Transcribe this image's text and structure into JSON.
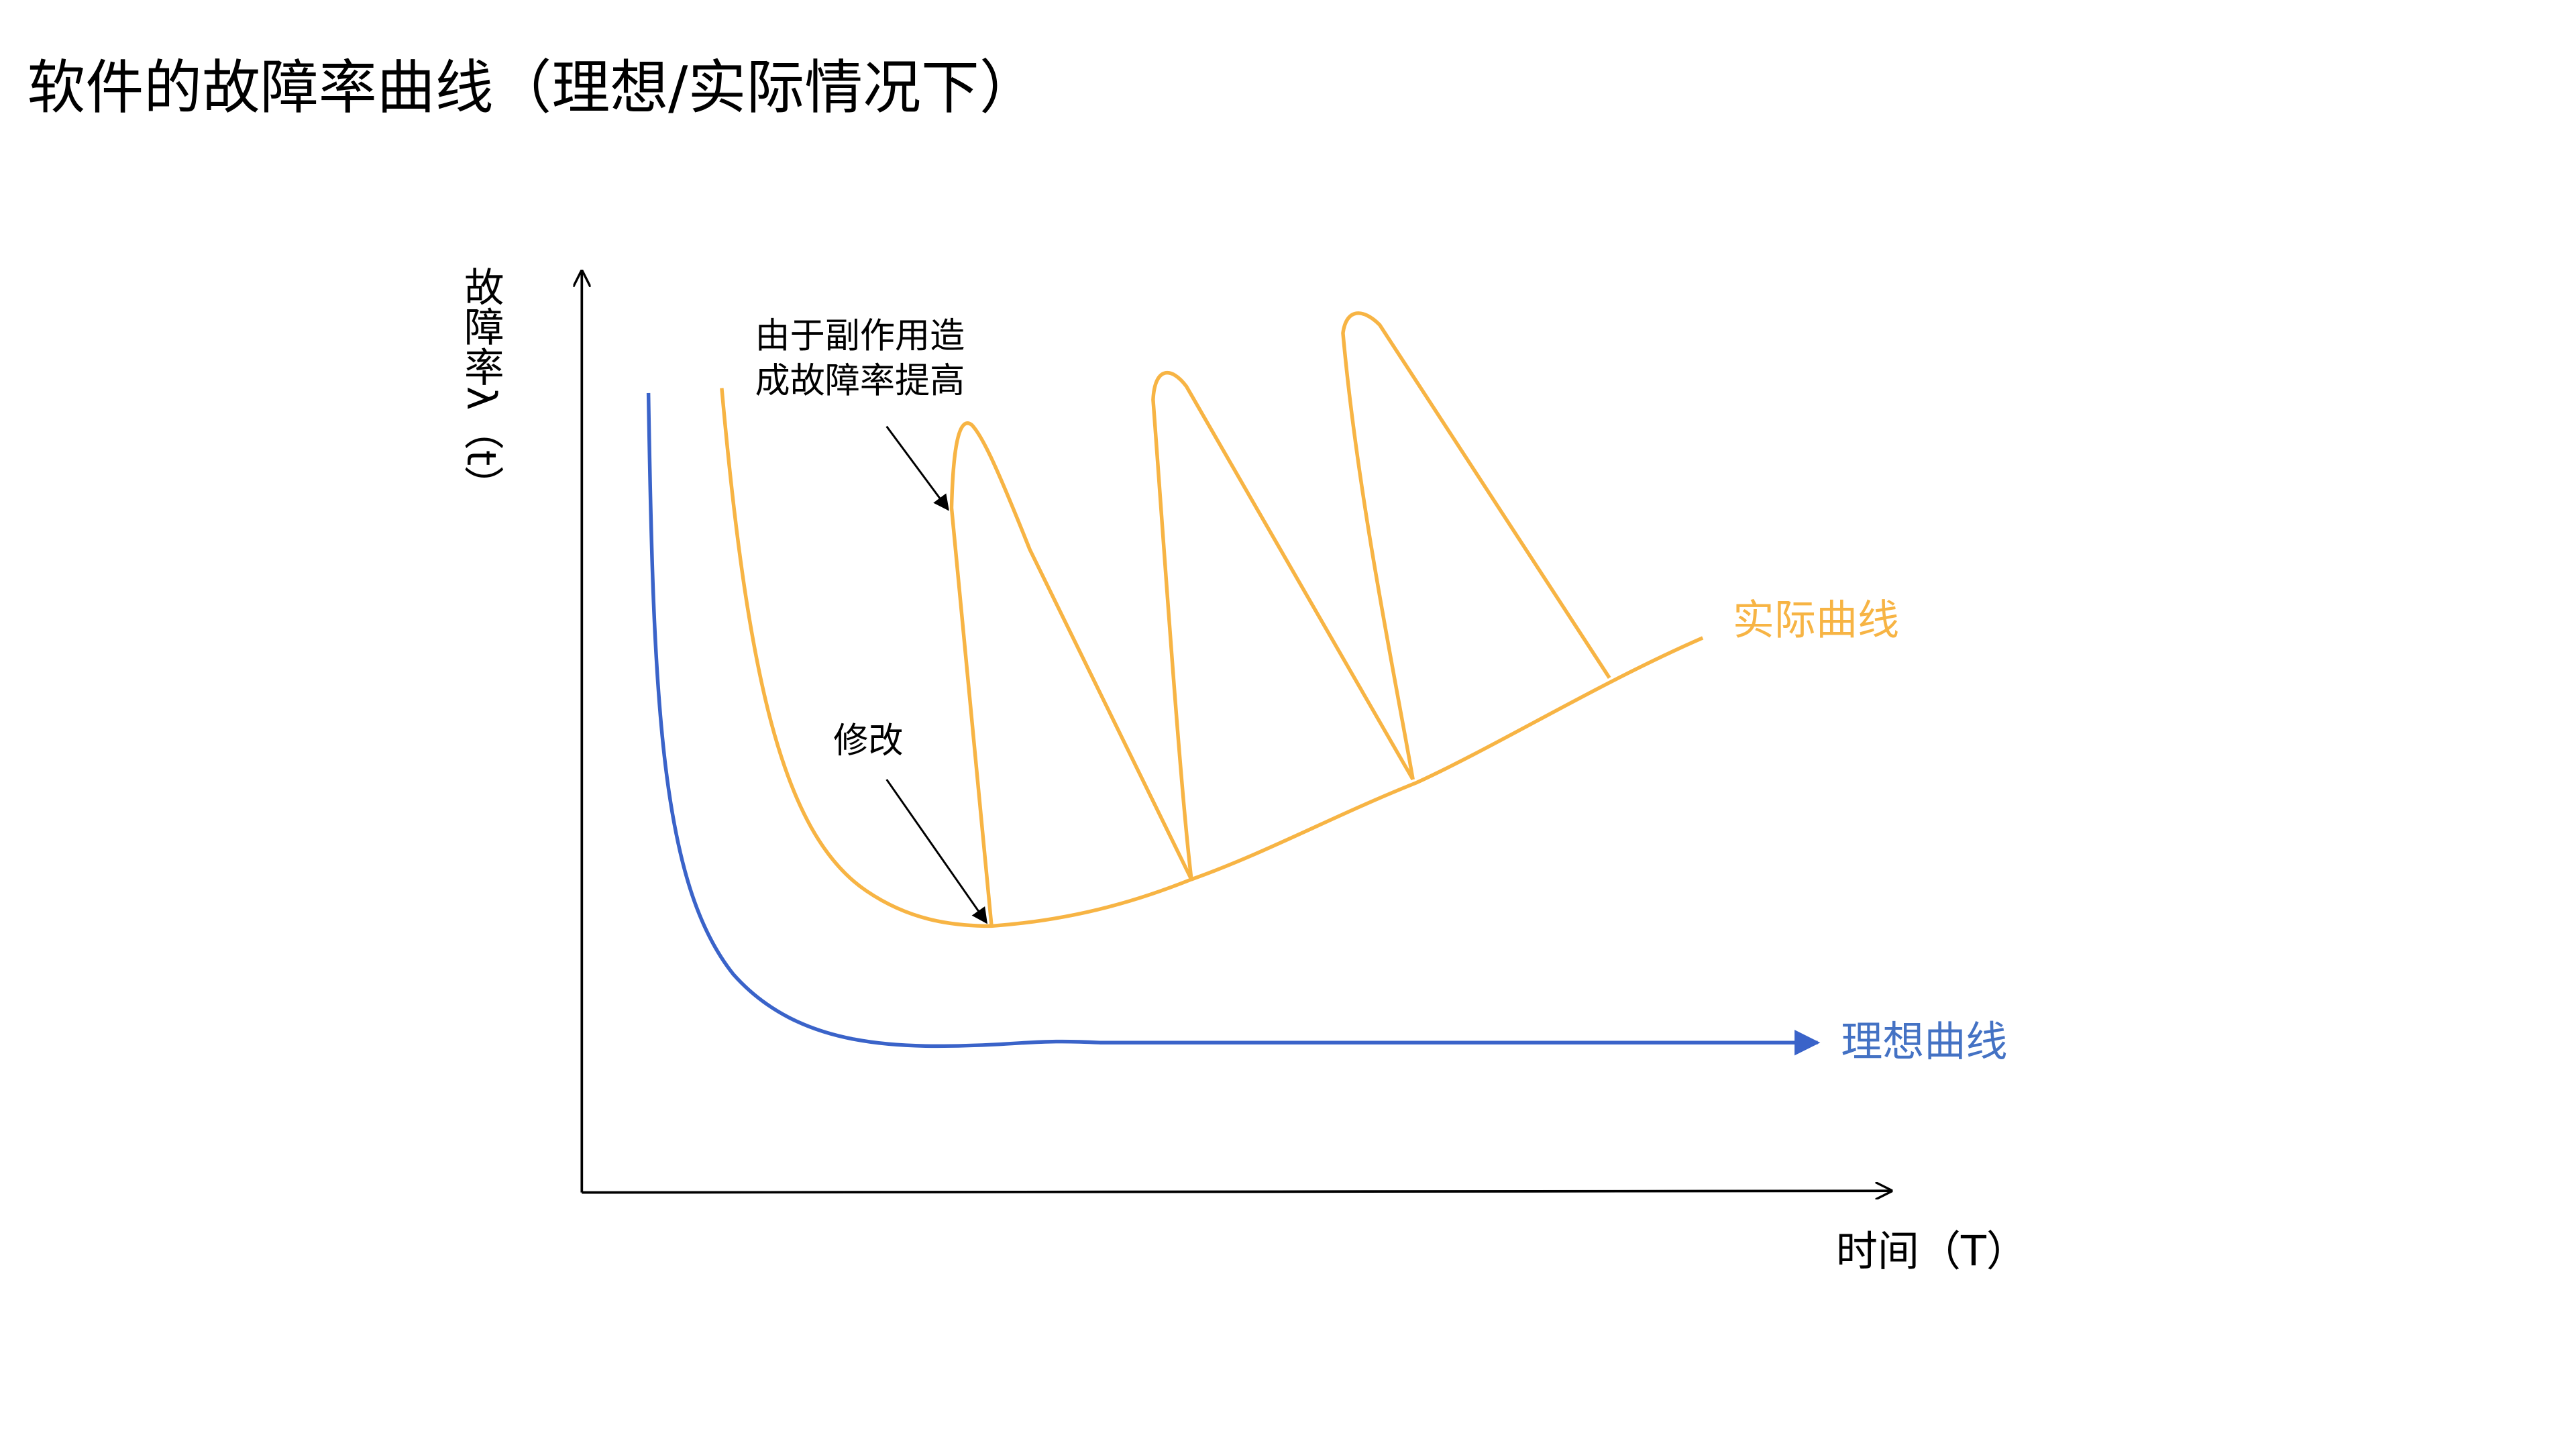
{
  "title": "软件的故障率曲线（理想/实际情况下）",
  "axes": {
    "y_label": "故障率λ（t）",
    "x_label": "时间（T）"
  },
  "annotations": {
    "side_effect": [
      "由于副作用造",
      "成故障率提高"
    ],
    "modify": "修改"
  },
  "curves": {
    "actual": "实际曲线",
    "ideal": "理想曲线"
  }
}
